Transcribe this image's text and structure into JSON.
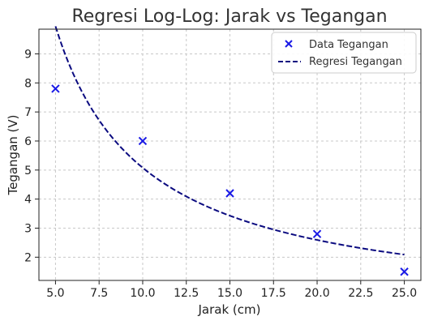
{
  "chart_data": {
    "type": "scatter",
    "title": "Regresi Log-Log: Jarak vs Tegangan",
    "xlabel": "Jarak (cm)",
    "ylabel": "Tegangan (V)",
    "xlim": [
      4.05,
      25.95
    ],
    "ylim": [
      1.2,
      9.85
    ],
    "xticks": [
      5.0,
      7.5,
      10.0,
      12.5,
      15.0,
      17.5,
      20.0,
      22.5,
      25.0
    ],
    "xtick_labels": [
      "5.0",
      "7.5",
      "10.0",
      "12.5",
      "15.0",
      "17.5",
      "20.0",
      "22.5",
      "25.0"
    ],
    "yticks": [
      2,
      3,
      4,
      5,
      6,
      7,
      8,
      9
    ],
    "ytick_labels": [
      "2",
      "3",
      "4",
      "5",
      "6",
      "7",
      "8",
      "9"
    ],
    "grid": true,
    "legend_position": "top-right",
    "series": [
      {
        "name": "Data Tegangan",
        "kind": "scatter",
        "marker": "x",
        "color": "#1a1ae6",
        "x": [
          5,
          10,
          15,
          20,
          25
        ],
        "y": [
          7.8,
          6.0,
          4.2,
          2.8,
          1.5
        ]
      },
      {
        "name": "Regresi Tegangan",
        "kind": "line",
        "style": "dashed",
        "color": "#0b0b80",
        "model": "power",
        "a": 47.4,
        "b": -0.97,
        "x_range": [
          5,
          25
        ]
      }
    ]
  }
}
